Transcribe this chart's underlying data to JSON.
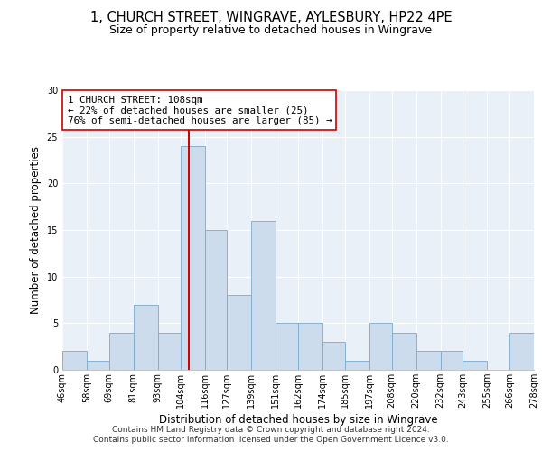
{
  "title": "1, CHURCH STREET, WINGRAVE, AYLESBURY, HP22 4PE",
  "subtitle": "Size of property relative to detached houses in Wingrave",
  "xlabel": "Distribution of detached houses by size in Wingrave",
  "ylabel": "Number of detached properties",
  "bin_edges": [
    46,
    58,
    69,
    81,
    93,
    104,
    116,
    127,
    139,
    151,
    162,
    174,
    185,
    197,
    208,
    220,
    232,
    243,
    255,
    266,
    278
  ],
  "bar_heights": [
    2,
    1,
    4,
    7,
    4,
    24,
    15,
    8,
    16,
    5,
    5,
    3,
    1,
    5,
    4,
    2,
    2,
    1,
    0,
    4
  ],
  "tick_labels": [
    "46sqm",
    "58sqm",
    "69sqm",
    "81sqm",
    "93sqm",
    "104sqm",
    "116sqm",
    "127sqm",
    "139sqm",
    "151sqm",
    "162sqm",
    "174sqm",
    "185sqm",
    "197sqm",
    "208sqm",
    "220sqm",
    "232sqm",
    "243sqm",
    "255sqm",
    "266sqm",
    "278sqm"
  ],
  "bar_color": "#cddcec",
  "bar_edgecolor": "#7aaacc",
  "vline_x": 108,
  "vline_color": "#cc0000",
  "annotation_text": "1 CHURCH STREET: 108sqm\n← 22% of detached houses are smaller (25)\n76% of semi-detached houses are larger (85) →",
  "ylim": [
    0,
    30
  ],
  "yticks": [
    0,
    5,
    10,
    15,
    20,
    25,
    30
  ],
  "footer_line1": "Contains HM Land Registry data © Crown copyright and database right 2024.",
  "footer_line2": "Contains public sector information licensed under the Open Government Licence v3.0.",
  "title_fontsize": 10.5,
  "subtitle_fontsize": 9,
  "axis_label_fontsize": 8.5,
  "tick_fontsize": 7,
  "annotation_fontsize": 7.8,
  "footer_fontsize": 6.5,
  "bg_color": "#eaf0f8"
}
